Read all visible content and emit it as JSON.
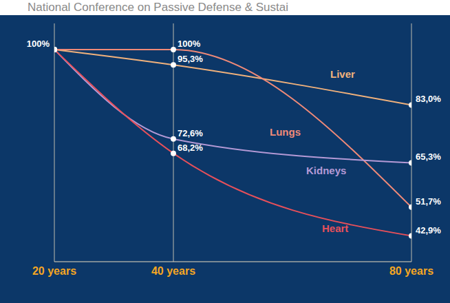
{
  "chart_data": {
    "type": "line",
    "title": "National Conference on Passive Defense & Sustai",
    "x": [
      20,
      40,
      80
    ],
    "xlim": [
      20,
      80
    ],
    "xticks": [
      {
        "value": 20,
        "label": "20 years"
      },
      {
        "value": 40,
        "label": "40 years"
      },
      {
        "value": 80,
        "label": "80 years"
      }
    ],
    "ylim": [
      35,
      108
    ],
    "tick_labels": "x",
    "grid": true,
    "data_labels": true,
    "series": [
      {
        "name": "Liver",
        "color": "#f2b27c",
        "values": [
          100,
          95.3,
          83.0
        ],
        "value_labels": [
          "100%",
          "95,3%",
          "83,0%"
        ],
        "marker": "circle",
        "line_style": "solid"
      },
      {
        "name": "Lungs",
        "color": "#f08a78",
        "values": [
          100,
          100,
          51.7
        ],
        "value_labels": [
          null,
          "100%",
          "51,7%"
        ],
        "marker": "circle",
        "line_style": "solid"
      },
      {
        "name": "Kidneys",
        "color": "#b59ad6",
        "values": [
          100,
          72.6,
          65.3
        ],
        "value_labels": [
          null,
          "72,6%",
          "65,3%"
        ],
        "marker": "circle",
        "line_style": "solid"
      },
      {
        "name": "Heart",
        "color": "#e8505a",
        "values": [
          100,
          68.2,
          42.9
        ],
        "value_labels": [
          null,
          "68,2%",
          "42,9%"
        ],
        "marker": "circle",
        "line_style": "solid"
      }
    ]
  }
}
